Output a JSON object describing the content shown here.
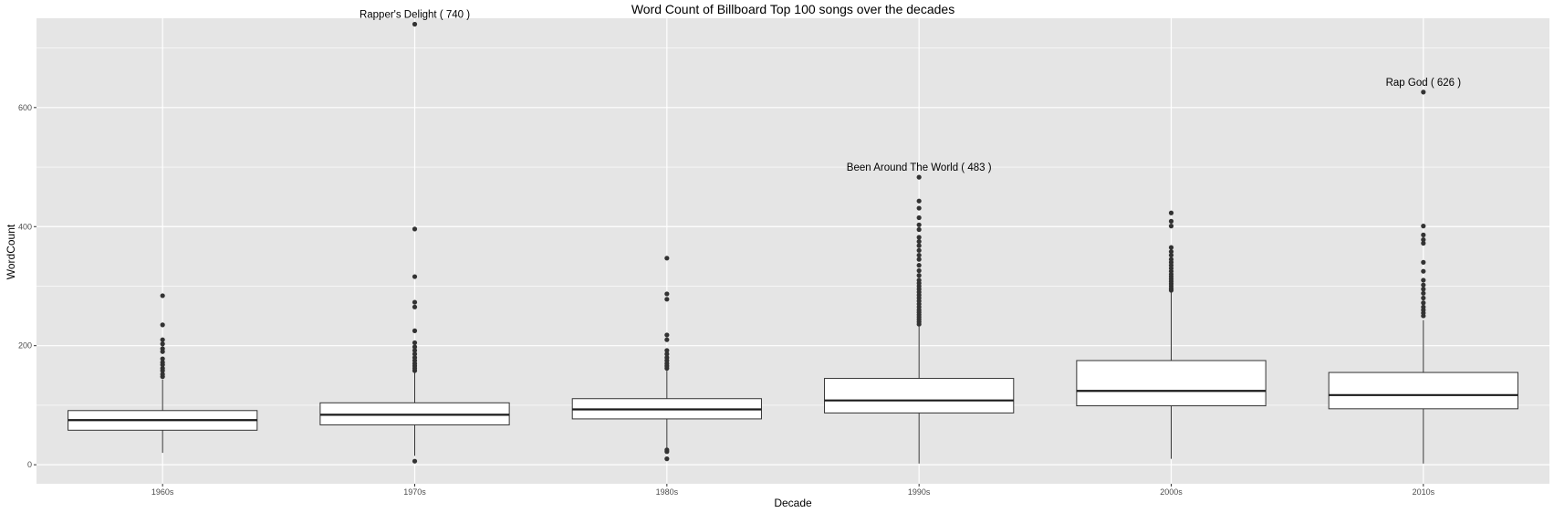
{
  "chart_data": {
    "type": "boxplot",
    "title": "Word Count of Billboard Top 100 songs over the decades",
    "xlabel": "Decade",
    "ylabel": "WordCount",
    "ylim": [
      -32,
      750
    ],
    "yticks": [
      0,
      200,
      400,
      600
    ],
    "grid": true,
    "legend": "none",
    "colors": {
      "panel_bg": "#e5e5e5",
      "grid": "#ffffff",
      "box_fill": "#ffffff",
      "box_stroke": "#333333",
      "outlier": "#333333"
    },
    "categories": [
      "1960s",
      "1970s",
      "1980s",
      "1990s",
      "2000s",
      "2010s"
    ],
    "boxes": [
      {
        "category": "1960s",
        "whisker_low": 20,
        "q1": 58,
        "median": 75,
        "q3": 91,
        "whisker_high": 143,
        "outliers": [
          148,
          152,
          158,
          162,
          168,
          172,
          178,
          190,
          195,
          203,
          210,
          235,
          284
        ]
      },
      {
        "category": "1970s",
        "whisker_low": 15,
        "q1": 67,
        "median": 84,
        "q3": 104,
        "whisker_high": 155,
        "outliers": [
          6,
          158,
          162,
          166,
          170,
          175,
          180,
          186,
          192,
          198,
          205,
          225,
          265,
          273,
          316,
          396,
          740
        ]
      },
      {
        "category": "1980s",
        "whisker_low": 28,
        "q1": 77,
        "median": 93,
        "q3": 111,
        "whisker_high": 158,
        "outliers": [
          10,
          22,
          25,
          162,
          166,
          170,
          175,
          180,
          186,
          192,
          210,
          218,
          278,
          287,
          347
        ]
      },
      {
        "category": "1990s",
        "whisker_low": 2,
        "q1": 87,
        "median": 108,
        "q3": 145,
        "whisker_high": 232,
        "outliers": [
          236,
          240,
          244,
          248,
          252,
          256,
          260,
          265,
          270,
          275,
          280,
          285,
          290,
          295,
          300,
          305,
          310,
          318,
          326,
          335,
          345,
          352,
          360,
          368,
          375,
          382,
          395,
          403,
          415,
          431,
          443,
          483
        ]
      },
      {
        "category": "2000s",
        "whisker_low": 10,
        "q1": 99,
        "median": 124,
        "q3": 175,
        "whisker_high": 290,
        "outliers": [
          293,
          296,
          300,
          304,
          308,
          312,
          316,
          320,
          325,
          330,
          335,
          340,
          345,
          352,
          358,
          365,
          401,
          409,
          423
        ]
      },
      {
        "category": "2010s",
        "whisker_low": 2,
        "q1": 94,
        "median": 117,
        "q3": 155,
        "whisker_high": 243,
        "outliers": [
          250,
          255,
          260,
          265,
          272,
          280,
          288,
          295,
          302,
          310,
          325,
          340,
          372,
          378,
          386,
          401,
          626
        ]
      }
    ],
    "annotations": [
      {
        "category": "1970s",
        "value": 740,
        "text": "Rapper's Delight ( 740 )"
      },
      {
        "category": "1990s",
        "value": 483,
        "text": "Been Around The World ( 483 )"
      },
      {
        "category": "2010s",
        "value": 626,
        "text": "Rap God ( 626 )"
      }
    ]
  }
}
